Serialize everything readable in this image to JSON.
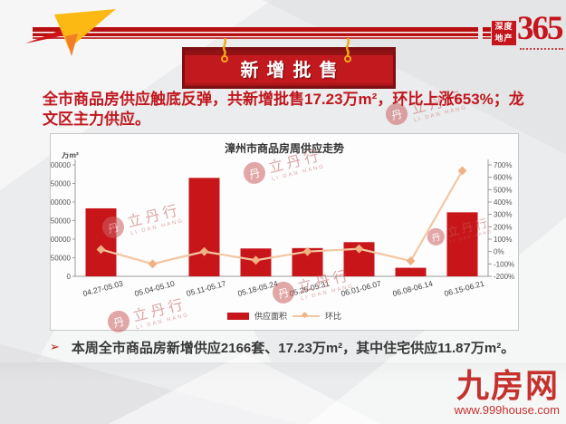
{
  "brand": {
    "box_line1": "深度",
    "box_line2": "地产",
    "number": "365"
  },
  "banner": {
    "title": "新增批售"
  },
  "headline": {
    "text": "全市商品房供应触底反弹，共新增批售17.23万m²，环比上涨653%；龙文区主力供应。"
  },
  "chart_data": {
    "type": "bar",
    "title": "漳州市商品房周供应走势",
    "categories": [
      "04.27-05.03",
      "05.04-05.10",
      "05.11-05.17",
      "05.18-05.24",
      "05.25-05.31",
      "06.01-06.07",
      "06.08-06.14",
      "06.15-06.21"
    ],
    "series": [
      {
        "name": "供应面积",
        "type": "bar",
        "axis": "left",
        "color": "#c8151a",
        "values": [
          183000,
          0,
          265000,
          75000,
          76000,
          92000,
          23000,
          172300
        ]
      },
      {
        "name": "环比",
        "type": "line",
        "axis": "right",
        "color": "#f3c6a2",
        "marker_color": "#f0b184",
        "values": [
          17,
          -100,
          0,
          -70,
          0,
          22,
          -76,
          653
        ]
      }
    ],
    "left_axis": {
      "label": "万m²",
      "min": 0,
      "max": 300000,
      "step": 50000
    },
    "right_axis": {
      "min": -200,
      "max": 700,
      "step": 100,
      "suffix": "%"
    },
    "legend_position": "bottom",
    "grid": false
  },
  "watermark": {
    "brand": "立丹行",
    "brand_en": "LI DAN HANG",
    "glyph": "丹"
  },
  "footnote": {
    "bullet": "➢",
    "text": "本周全市商品房新增供应2166套、17.23万m²，其中住宅供应11.87万m²。"
  },
  "site": {
    "name": "九房网",
    "url": "www.999house.com"
  },
  "colors": {
    "accent_red": "#c2191f",
    "bar_red": "#c8151a",
    "line_peach": "#f3c6a2",
    "headline_red": "#c0171e"
  }
}
